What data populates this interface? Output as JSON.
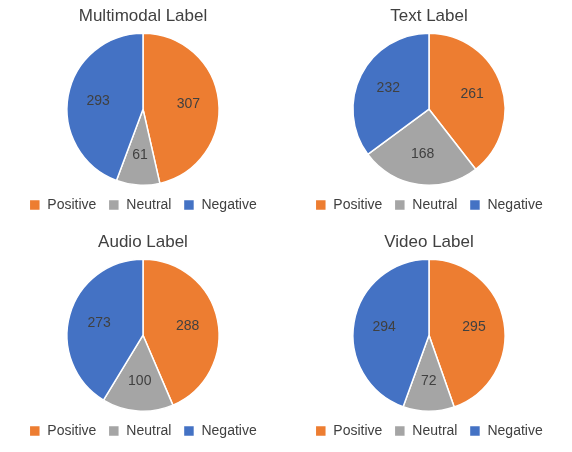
{
  "chart_data": [
    {
      "type": "pie",
      "title": "Multimodal Label",
      "categories": [
        "Positive",
        "Neutral",
        "Negative"
      ],
      "values": [
        307,
        61,
        293
      ],
      "colors": [
        "#ed7d31",
        "#a5a5a5",
        "#4472c4"
      ],
      "data_labels": true,
      "legend": "bottom"
    },
    {
      "type": "pie",
      "title": "Text Label",
      "categories": [
        "Positive",
        "Neutral",
        "Negative"
      ],
      "values": [
        261,
        168,
        232
      ],
      "colors": [
        "#ed7d31",
        "#a5a5a5",
        "#4472c4"
      ],
      "data_labels": true,
      "legend": "bottom"
    },
    {
      "type": "pie",
      "title": "Audio Label",
      "categories": [
        "Positive",
        "Neutral",
        "Negative"
      ],
      "values": [
        288,
        100,
        273
      ],
      "colors": [
        "#ed7d31",
        "#a5a5a5",
        "#4472c4"
      ],
      "data_labels": true,
      "legend": "bottom"
    },
    {
      "type": "pie",
      "title": "Video Label",
      "categories": [
        "Positive",
        "Neutral",
        "Negative"
      ],
      "values": [
        295,
        72,
        294
      ],
      "colors": [
        "#ed7d31",
        "#a5a5a5",
        "#4472c4"
      ],
      "data_labels": true,
      "legend": "bottom"
    }
  ]
}
